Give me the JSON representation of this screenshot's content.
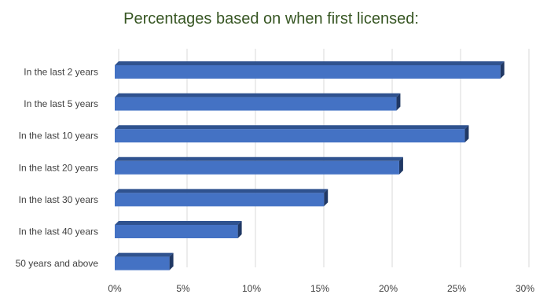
{
  "chart_data": {
    "type": "bar",
    "orientation": "horizontal",
    "style": "3d",
    "title": "Percentages based on when first licensed:",
    "xlabel": "",
    "ylabel": "",
    "categories": [
      "In the last 2 years",
      "In the last 5 years",
      "In the last 10 years",
      "In the last 20 years",
      "In the last 30 years",
      "In the last 40 years",
      "50 years and above"
    ],
    "values": [
      28.2,
      20.6,
      25.6,
      20.8,
      15.3,
      9.0,
      4.0
    ],
    "xlim": [
      0,
      30
    ],
    "xticks": [
      "0%",
      "5%",
      "10%",
      "15%",
      "20%",
      "25%",
      "30%"
    ],
    "grid": "vertical",
    "legend": "none",
    "colors": {
      "title": "#375623",
      "bar_front": "#4472C4",
      "bar_top": "#2F528F",
      "bar_side": "#203864",
      "grid": "#D9D9D9"
    }
  }
}
